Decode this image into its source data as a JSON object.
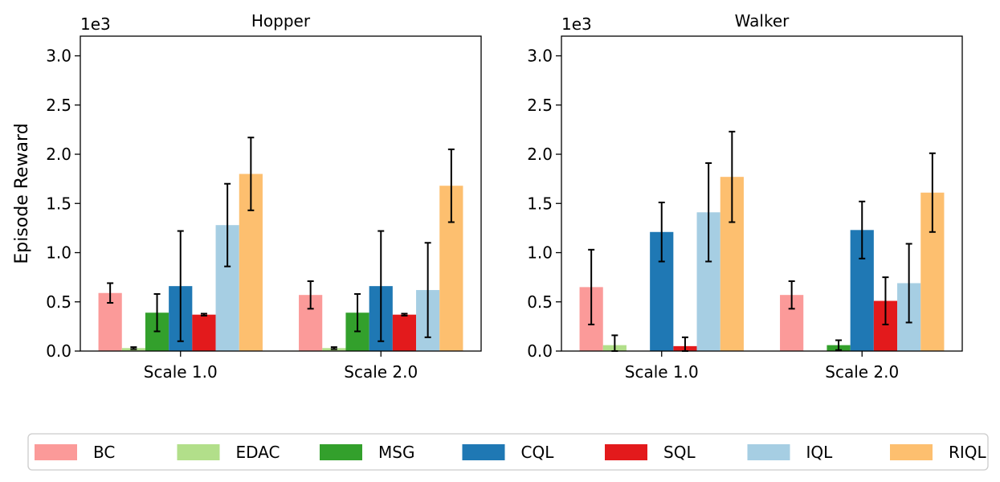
{
  "figure": {
    "ylabel": "Episode Reward",
    "legend_position": "bottom"
  },
  "colors": {
    "BC": "#fb9a99",
    "EDAC": "#b2df8a",
    "MSG": "#33a02c",
    "CQL": "#1f78b4",
    "SQL": "#e31a1c",
    "IQL": "#a6cee3",
    "RIQL": "#fdbf6f"
  },
  "chart_data": [
    {
      "type": "bar",
      "title": "Hopper",
      "categories": [
        "Scale 1.0",
        "Scale 2.0"
      ],
      "ylabel": "Episode Reward",
      "y_multiplier": "1e3",
      "ylim": [
        0,
        3.2
      ],
      "yticks": [
        "0.0",
        "0.5",
        "1.0",
        "1.5",
        "2.0",
        "2.5",
        "3.0"
      ],
      "grid": false,
      "series": [
        {
          "name": "BC",
          "values": [
            0.59,
            0.57
          ],
          "errors": [
            0.1,
            0.14
          ]
        },
        {
          "name": "EDAC",
          "values": [
            0.03,
            0.03
          ],
          "errors": [
            0.01,
            0.01
          ]
        },
        {
          "name": "MSG",
          "values": [
            0.39,
            0.39
          ],
          "errors": [
            0.19,
            0.19
          ]
        },
        {
          "name": "CQL",
          "values": [
            0.66,
            0.66
          ],
          "errors": [
            0.56,
            0.56
          ]
        },
        {
          "name": "SQL",
          "values": [
            0.37,
            0.37
          ],
          "errors": [
            0.01,
            0.01
          ]
        },
        {
          "name": "IQL",
          "values": [
            1.28,
            0.62
          ],
          "errors": [
            0.42,
            0.48
          ]
        },
        {
          "name": "RIQL",
          "values": [
            1.8,
            1.68
          ],
          "errors": [
            0.37,
            0.37
          ]
        }
      ]
    },
    {
      "type": "bar",
      "title": "Walker",
      "categories": [
        "Scale 1.0",
        "Scale 2.0"
      ],
      "ylabel": "",
      "y_multiplier": "1e3",
      "ylim": [
        0,
        3.2
      ],
      "yticks": [
        "0.0",
        "0.5",
        "1.0",
        "1.5",
        "2.0",
        "2.5",
        "3.0"
      ],
      "grid": false,
      "series": [
        {
          "name": "BC",
          "values": [
            0.65,
            0.57
          ],
          "errors": [
            0.38,
            0.14
          ]
        },
        {
          "name": "EDAC",
          "values": [
            0.06,
            0.0
          ],
          "errors": [
            0.1,
            0.0
          ]
        },
        {
          "name": "MSG",
          "values": [
            0.0,
            0.06
          ],
          "errors": [
            0.0,
            0.05
          ]
        },
        {
          "name": "CQL",
          "values": [
            1.21,
            1.23
          ],
          "errors": [
            0.3,
            0.29
          ]
        },
        {
          "name": "SQL",
          "values": [
            0.05,
            0.51
          ],
          "errors": [
            0.09,
            0.24
          ]
        },
        {
          "name": "IQL",
          "values": [
            1.41,
            0.69
          ],
          "errors": [
            0.5,
            0.4
          ]
        },
        {
          "name": "RIQL",
          "values": [
            1.77,
            1.61
          ],
          "errors": [
            0.46,
            0.4
          ]
        }
      ]
    }
  ]
}
